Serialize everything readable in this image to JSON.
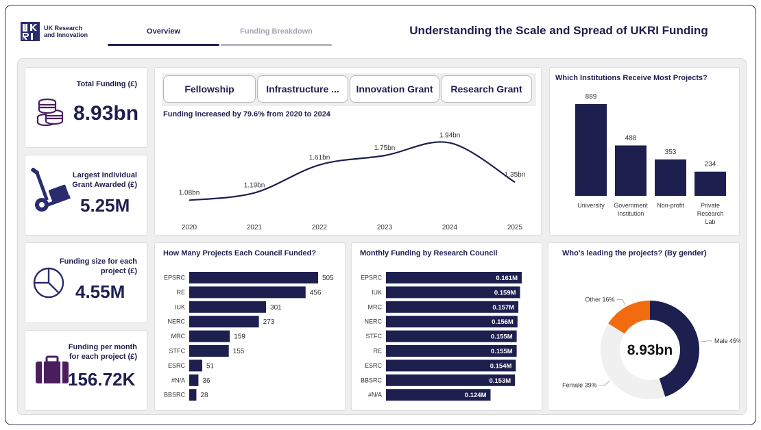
{
  "header": {
    "logo_text_line1": "UK Research",
    "logo_text_line2": "and Innovation",
    "tabs": [
      {
        "label": "Overview",
        "active": true
      },
      {
        "label": "Funding Breakdown",
        "active": false
      }
    ],
    "title": "Understanding the Scale and Spread of UKRI Funding"
  },
  "kpis": {
    "total_funding": {
      "label": "Total Funding (£)",
      "value": "8.93bn",
      "icon": "coins-icon"
    },
    "largest_grant": {
      "label_line1": "Largest Individual",
      "label_line2": "Grant Awarded (£)",
      "value": "5.25M",
      "icon": "hand-truck-icon"
    },
    "funding_size": {
      "label_line1": "Funding size for each",
      "label_line2": "project (£)",
      "value": "4.55M",
      "icon": "pie-chart-icon"
    },
    "funding_month": {
      "label_line1": "Funding per month",
      "label_line2": "for each project (£)",
      "value": "156.72K",
      "icon": "briefcase-icon"
    }
  },
  "slicer": {
    "buttons": [
      "Fellowship",
      "Infrastructure ...",
      "Innovation Grant",
      "Research Grant"
    ]
  },
  "colors": {
    "navy": "#1d1f4f",
    "orange": "#f26b0f",
    "light_grey": "#f0f0f0"
  },
  "chart_data": [
    {
      "id": "funding_trend",
      "type": "line",
      "title": "Funding increased by 79.6% from 2020 to 2024",
      "categories": [
        "2020",
        "2021",
        "2022",
        "2023",
        "2024",
        "2025"
      ],
      "values": [
        1.08,
        1.19,
        1.61,
        1.75,
        1.94,
        1.35
      ],
      "labels": [
        "1.08bn",
        "1.19bn",
        "1.61bn",
        "1.75bn",
        "1.94bn",
        "1.35bn"
      ],
      "ylim": [
        0.9,
        2.1
      ]
    },
    {
      "id": "institutions",
      "type": "bar",
      "title": "Which Institutions Receive Most Projects?",
      "categories": [
        [
          "University"
        ],
        [
          "Government",
          "Institution"
        ],
        [
          "Non-profit"
        ],
        [
          "Private",
          "Research",
          "Lab"
        ]
      ],
      "values": [
        889,
        488,
        353,
        234
      ],
      "ylim": [
        0,
        889
      ]
    },
    {
      "id": "council_projects",
      "type": "bar",
      "orientation": "horizontal",
      "title": "How Many Projects Each Council Funded?",
      "categories": [
        "EPSRC",
        "RE",
        "IUK",
        "NERC",
        "MRC",
        "STFC",
        "ESRC",
        "#N/A",
        "BBSRC"
      ],
      "values": [
        505,
        456,
        301,
        273,
        159,
        155,
        51,
        36,
        28
      ],
      "labels": [
        "505",
        "456",
        "301",
        "273",
        "159",
        "155",
        "51",
        "36",
        "28"
      ],
      "xlim": [
        0,
        505
      ]
    },
    {
      "id": "monthly_funding",
      "type": "bar",
      "orientation": "horizontal",
      "title": "Monthly Funding by Research Council",
      "categories": [
        "EPSRC",
        "IUK",
        "MRC",
        "NERC",
        "STFC",
        "RE",
        "ESRC",
        "BBSRC",
        "#N/A"
      ],
      "values": [
        0.161,
        0.159,
        0.157,
        0.156,
        0.155,
        0.155,
        0.154,
        0.153,
        0.124
      ],
      "labels": [
        "0.161M",
        "0.159M",
        "0.157M",
        "0.156M",
        "0.155M",
        "0.155M",
        "0.154M",
        "0.153M",
        "0.124M"
      ],
      "xlim": [
        0,
        0.161
      ]
    },
    {
      "id": "gender",
      "type": "pie",
      "title": "Who's leading the projects? (By gender)",
      "center_label": "8.93bn",
      "slices": [
        {
          "name": "Male",
          "value": 45,
          "label": "Male 45%",
          "color": "#1d1f4f"
        },
        {
          "name": "Female",
          "value": 39,
          "label": "Female 39%",
          "color": "#f0f0f0"
        },
        {
          "name": "Other",
          "value": 16,
          "label": "Other 16%",
          "color": "#f26b0f"
        }
      ]
    }
  ]
}
